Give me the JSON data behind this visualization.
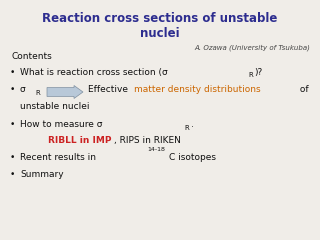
{
  "title_line1": "Reaction cross sections of unstable",
  "title_line2": "nuclei",
  "title_color": "#2d2d8f",
  "author": "A. Ozawa (University of Tsukuba)",
  "author_color": "#444444",
  "background_color": "#f0ede8",
  "contents_label": "Contents",
  "riken_red": "RIBLL in IMP",
  "riken_black": ", RIPS in RIKEN",
  "riken_color": "#cc2222",
  "text_color": "#111111",
  "highlight_color": "#cc6600",
  "arrow_fc": "#b8c8d8",
  "arrow_ec": "#8090a0"
}
